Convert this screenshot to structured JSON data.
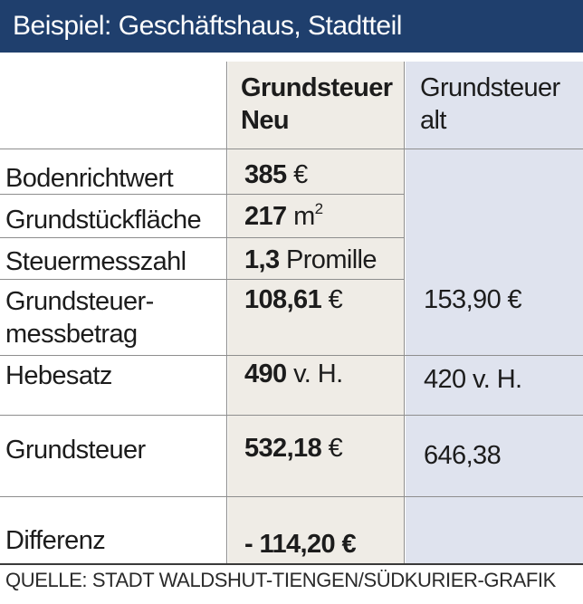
{
  "title": "Beispiel: Geschäftshaus, Stadtteil",
  "headers": {
    "neu_line1": "Grundsteuer",
    "neu_line2": "Neu",
    "alt_line1": "Grundsteuer",
    "alt_line2": "alt"
  },
  "rows": [
    {
      "label": "Bodenrichtwert",
      "neu_value": "385",
      "neu_unit": "€",
      "alt": ""
    },
    {
      "label": "Grundstückfläche",
      "neu_value": "217",
      "neu_unit": "m",
      "neu_sup": "2",
      "alt": ""
    },
    {
      "label": "Steuermesszahl",
      "neu_value": "1,3",
      "neu_unit": "Promille",
      "alt": ""
    },
    {
      "label_line1": "Grundsteuer-",
      "label_line2": "messbetrag",
      "neu_value": "108,61",
      "neu_unit": "€",
      "alt": "153,90 €"
    },
    {
      "label": "Hebesatz",
      "neu_value": "490",
      "neu_unit": "v. H.",
      "alt": "420 v. H."
    },
    {
      "label": "Grundsteuer",
      "neu_value": "532,18",
      "neu_unit": "€",
      "alt": "646,38"
    },
    {
      "label": "Differenz",
      "neu_value": "- 114,20",
      "neu_unit": "€",
      "alt": ""
    }
  ],
  "source": "QUELLE: STADT WALDSHUT-TIENGEN/SÜDKURIER-GRAFIK"
}
